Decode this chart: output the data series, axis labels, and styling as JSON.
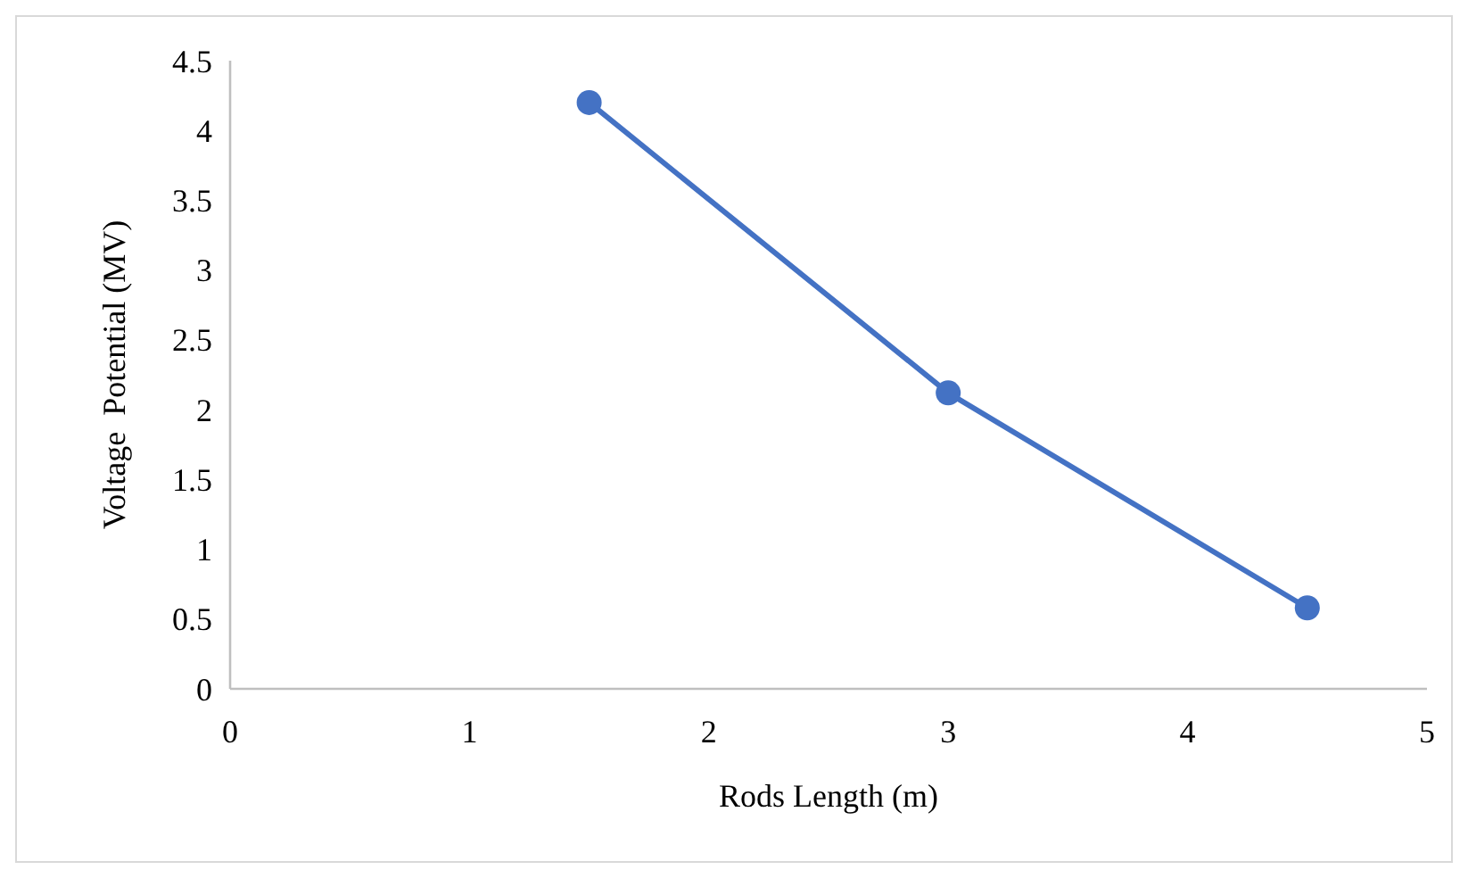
{
  "chart_data": {
    "type": "line",
    "xlabel": "Rods Length (m)",
    "ylabel": "Voltage  Potential (MV)",
    "x": [
      1.5,
      3,
      4.5
    ],
    "series": [
      {
        "color": "#4472c4",
        "values": [
          4.2,
          2.12,
          0.58
        ]
      }
    ],
    "xlim": [
      0,
      5
    ],
    "xticks": [
      0,
      1,
      2,
      3,
      4,
      5
    ],
    "ylim": [
      0,
      4.5
    ],
    "yticks": [
      0,
      0.5,
      1,
      1.5,
      2,
      2.5,
      3,
      3.5,
      4,
      4.5
    ],
    "grid": false,
    "marker": "circle",
    "line_style": "solid"
  }
}
